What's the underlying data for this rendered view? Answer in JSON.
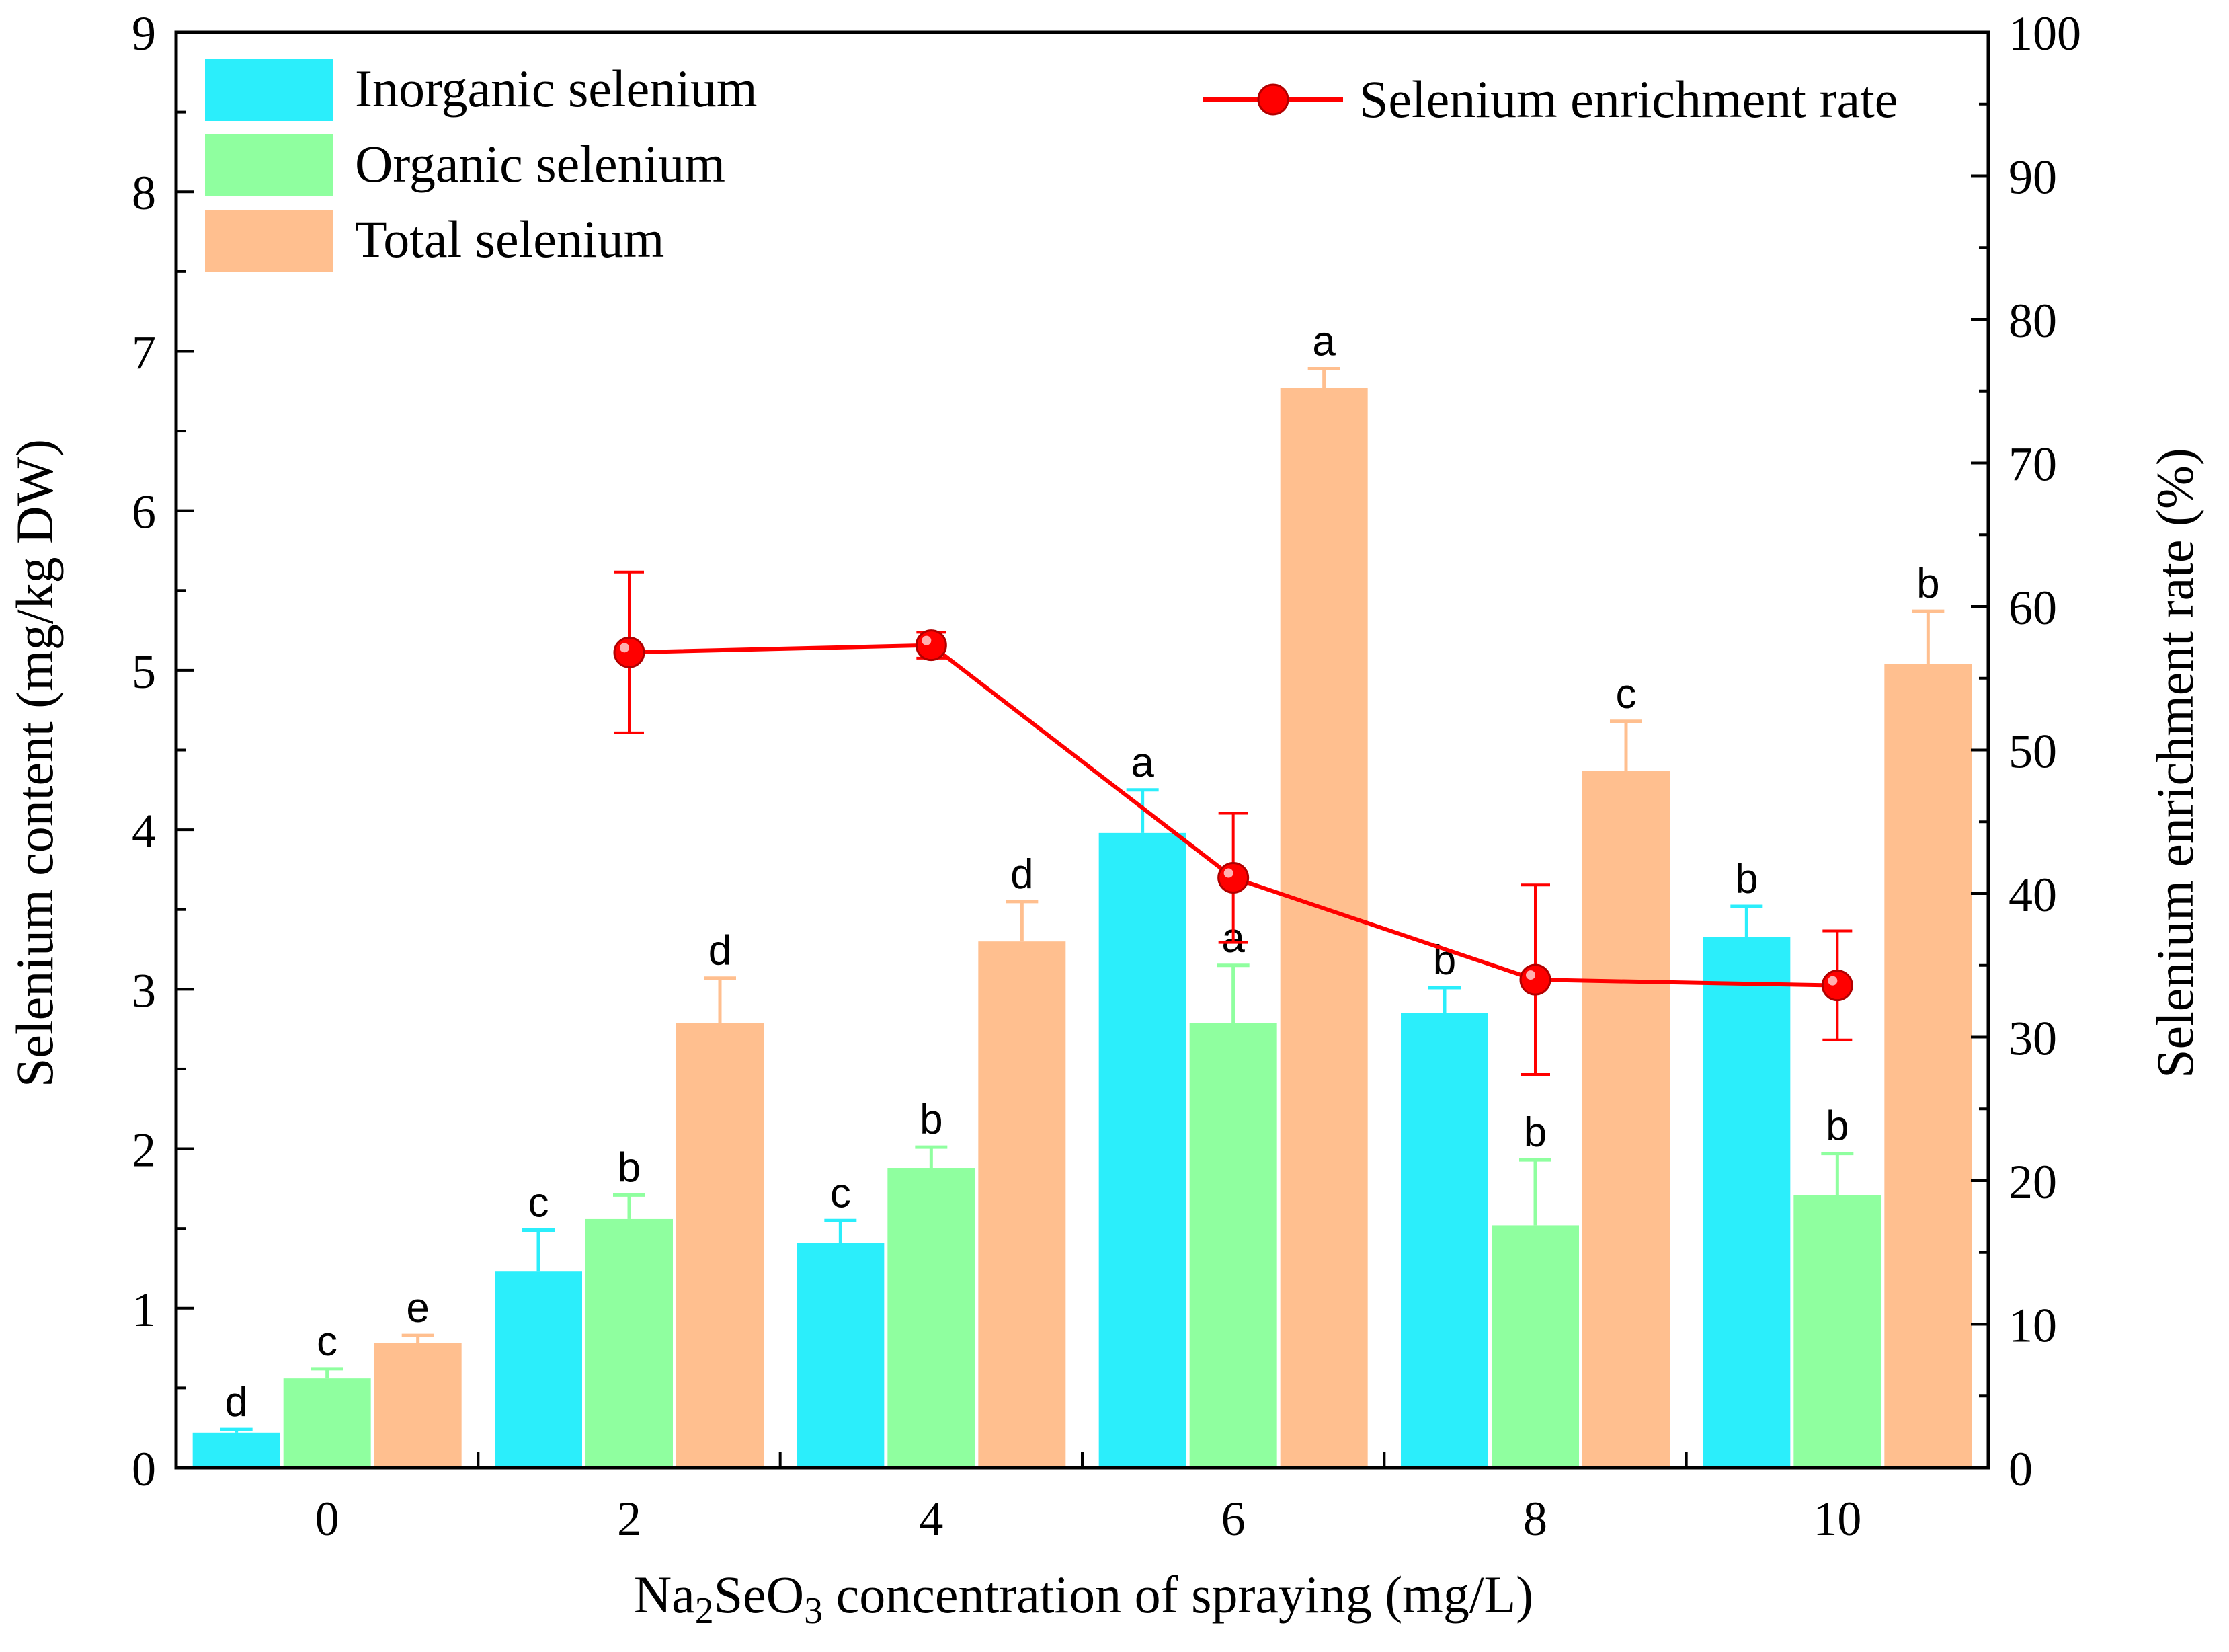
{
  "chart_data": {
    "type": "bar",
    "categories": [
      "0",
      "2",
      "4",
      "6",
      "8",
      "10"
    ],
    "xlabel": {
      "pre": "Na",
      "sub1": "2",
      "mid": "SeO",
      "sub2": "3",
      "post": " concentration of spraying (mg/L)"
    },
    "ylabel": "Selenium content (mg/kg DW)",
    "y2label": "Selenium enrichment rate (%)",
    "ylim": [
      0,
      9
    ],
    "y2lim": [
      0,
      100
    ],
    "yticks": [
      "0",
      "1",
      "2",
      "3",
      "4",
      "5",
      "6",
      "7",
      "8",
      "9"
    ],
    "y2ticks": [
      "0",
      "10",
      "20",
      "30",
      "40",
      "50",
      "60",
      "70",
      "80",
      "90",
      "100"
    ],
    "series": [
      {
        "name": "Inorganic selenium",
        "color": "#2BEEFB",
        "values": [
          0.22,
          1.23,
          1.41,
          3.98,
          2.85,
          3.33
        ],
        "errors": [
          0.02,
          0.26,
          0.14,
          0.27,
          0.16,
          0.19
        ],
        "letters": [
          "d",
          "c",
          "c",
          "a",
          "b",
          "b"
        ]
      },
      {
        "name": "Organic selenium",
        "color": "#8FFF9F",
        "values": [
          0.56,
          1.56,
          1.88,
          2.79,
          1.52,
          1.71
        ],
        "errors": [
          0.06,
          0.15,
          0.13,
          0.36,
          0.41,
          0.26
        ],
        "letters": [
          "c",
          "b",
          "b",
          "a",
          "b",
          "b"
        ]
      },
      {
        "name": "Total selenium",
        "color": "#FFBF8F",
        "values": [
          0.78,
          2.79,
          3.3,
          6.77,
          4.37,
          5.04
        ],
        "errors": [
          0.05,
          0.28,
          0.25,
          0.12,
          0.31,
          0.33
        ],
        "letters": [
          "e",
          "d",
          "d",
          "a",
          "c",
          "b"
        ]
      }
    ],
    "line": {
      "name": "Selenium enrichment rate",
      "color": "#FF0000",
      "axis": "right",
      "categories": [
        "2",
        "4",
        "6",
        "8",
        "10"
      ],
      "values": [
        56.8,
        57.3,
        41.1,
        34.0,
        33.6
      ],
      "errors": [
        5.6,
        0.9,
        4.5,
        6.6,
        3.8
      ]
    },
    "legend_position": "top"
  }
}
